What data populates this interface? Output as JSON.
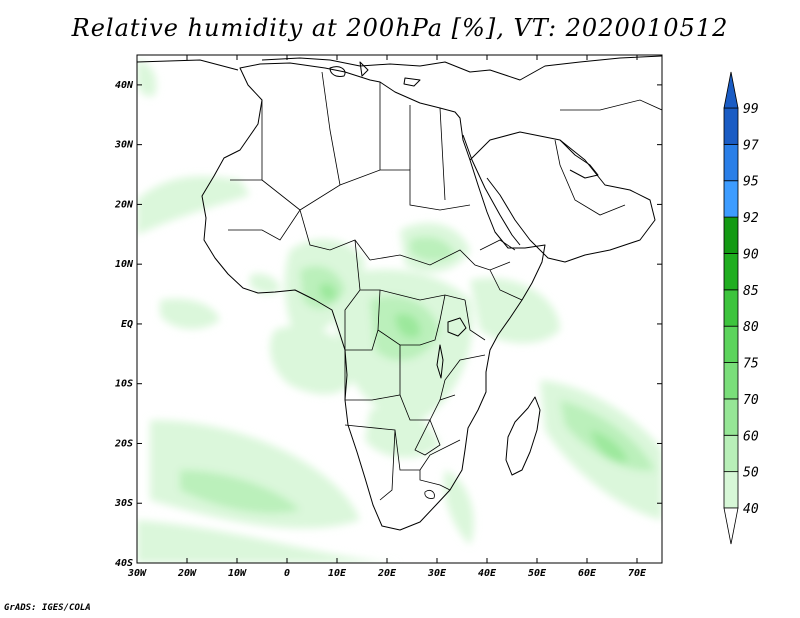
{
  "title": "Relative humidity at 200hPa [%], VT: 2020010512",
  "credit": "GrADS: IGES/COLA",
  "map": {
    "lon_range": [
      -30,
      75
    ],
    "lat_range": [
      -40,
      45
    ],
    "lon_ticks": [
      {
        "value": -30,
        "label": "30W"
      },
      {
        "value": -20,
        "label": "20W"
      },
      {
        "value": -10,
        "label": "10W"
      },
      {
        "value": 0,
        "label": "0"
      },
      {
        "value": 10,
        "label": "10E"
      },
      {
        "value": 20,
        "label": "20E"
      },
      {
        "value": 30,
        "label": "30E"
      },
      {
        "value": 40,
        "label": "40E"
      },
      {
        "value": 50,
        "label": "50E"
      },
      {
        "value": 60,
        "label": "60E"
      },
      {
        "value": 70,
        "label": "70E"
      }
    ],
    "lat_ticks": [
      {
        "value": 40,
        "label": "40N"
      },
      {
        "value": 30,
        "label": "30N"
      },
      {
        "value": 20,
        "label": "20N"
      },
      {
        "value": 10,
        "label": "10N"
      },
      {
        "value": 0,
        "label": "EQ"
      },
      {
        "value": -10,
        "label": "10S"
      },
      {
        "value": -20,
        "label": "20S"
      },
      {
        "value": -30,
        "label": "30S"
      },
      {
        "value": -40,
        "label": "40S"
      }
    ]
  },
  "colorbar": {
    "levels": [
      "40",
      "50",
      "60",
      "70",
      "75",
      "80",
      "85",
      "90",
      "92",
      "95",
      "97",
      "99"
    ],
    "colors": [
      "#f0fcf0",
      "#d7f7d7",
      "#b8efb8",
      "#96e696",
      "#7ade7a",
      "#5cd45c",
      "#3dc43d",
      "#20ae20",
      "#139a13",
      "#3d9cff",
      "#2a7fe8",
      "#1a5cc4"
    ],
    "below_color": "#ffffff",
    "above_color": "#1a5cc4"
  }
}
